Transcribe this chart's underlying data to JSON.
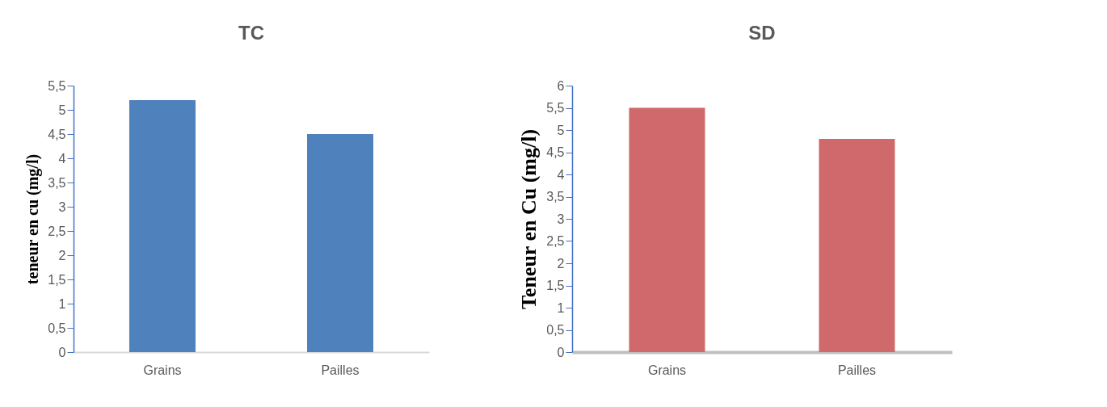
{
  "chart_data": [
    {
      "type": "bar",
      "title": "TC",
      "ylabel": "teneur en cu (mg/l)",
      "categories": [
        "Grains",
        "Pailles"
      ],
      "values": [
        5.2,
        4.5
      ],
      "color": "#4f81bd",
      "ylim": [
        0,
        5.5
      ],
      "yticks": [
        0,
        {
          "value": 0.5,
          "label": "0,5"
        },
        1,
        {
          "value": 1.5,
          "label": "1,5"
        },
        2,
        {
          "value": 2.5,
          "label": "2,5"
        },
        3,
        {
          "value": 3.5,
          "label": "3,5"
        },
        4,
        {
          "value": 4.5,
          "label": "4,5"
        },
        5,
        {
          "value": 5.5,
          "label": "5,5"
        }
      ],
      "grid": false
    },
    {
      "type": "bar",
      "title": "SD",
      "ylabel": "Teneur en Cu  (mg/l)",
      "categories": [
        "Grains",
        "Pailles"
      ],
      "values": [
        5.5,
        4.8
      ],
      "color": "#d0696b",
      "ylim": [
        0,
        6
      ],
      "yticks": [
        0,
        {
          "value": 0.5,
          "label": "0,5"
        },
        1,
        {
          "value": 1.5,
          "label": "1,5"
        },
        2,
        {
          "value": 2.5,
          "label": "2,5"
        },
        3,
        {
          "value": 3.5,
          "label": "3,5"
        },
        4,
        {
          "value": 4.5,
          "label": "4,5"
        },
        5,
        {
          "value": 5.5,
          "label": "5,5"
        },
        6
      ],
      "grid": false
    }
  ]
}
